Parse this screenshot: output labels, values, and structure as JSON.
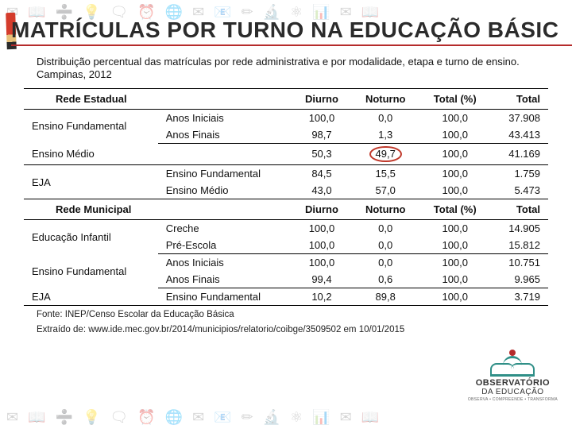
{
  "title": "MATRÍCULAS POR TURNO NA EDUCAÇÃO BÁSIC",
  "subtitle": "Distribuição percentual das matrículas por rede administrativa e por modalidade, etapa e turno de ensino. Campinas, 2012",
  "columns": {
    "network": "",
    "stage": "",
    "diurno": "Diurno",
    "noturno": "Noturno",
    "total_pct": "Total (%)",
    "total": "Total"
  },
  "sections": [
    {
      "header": "Rede Estadual",
      "rows": [
        {
          "group": "Ensino Fundamental",
          "rowspan": 2,
          "stage": "Anos Iniciais",
          "diurno": "100,0",
          "noturno": "0,0",
          "total_pct": "100,0",
          "total": "37.908",
          "top_rule": false
        },
        {
          "stage": "Anos Finais",
          "diurno": "98,7",
          "noturno": "1,3",
          "total_pct": "100,0",
          "total": "43.413",
          "bottom_rule": true
        },
        {
          "group": "Ensino Médio",
          "rowspan": 1,
          "stage": "",
          "diurno": "50,3",
          "noturno": "49,7",
          "noturno_circled": true,
          "total_pct": "100,0",
          "total": "41.169",
          "bottom_rule": true
        },
        {
          "group": "EJA",
          "rowspan": 2,
          "stage": "Ensino Fundamental",
          "diurno": "84,5",
          "noturno": "15,5",
          "total_pct": "100,0",
          "total": "1.759"
        },
        {
          "stage": "Ensino Médio",
          "diurno": "43,0",
          "noturno": "57,0",
          "total_pct": "100,0",
          "total": "5.473",
          "bottom_rule": true
        }
      ]
    },
    {
      "header": "Rede Municipal",
      "rows": [
        {
          "group": "Educação Infantil",
          "rowspan": 2,
          "stage": "Creche",
          "diurno": "100,0",
          "noturno": "0,0",
          "total_pct": "100,0",
          "total": "14.905"
        },
        {
          "stage": "Pré-Escola",
          "diurno": "100,0",
          "noturno": "0,0",
          "total_pct": "100,0",
          "total": "15.812",
          "bottom_rule": true
        },
        {
          "group": "Ensino Fundamental",
          "rowspan": 2,
          "stage": "Anos Iniciais",
          "diurno": "100,0",
          "noturno": "0,0",
          "total_pct": "100,0",
          "total": "10.751"
        },
        {
          "stage": "Anos Finais",
          "diurno": "99,4",
          "noturno": "0,6",
          "total_pct": "100,0",
          "total": "9.965",
          "bottom_rule": true
        },
        {
          "group": "EJA",
          "rowspan": 1,
          "stage": "Ensino Fundamental",
          "diurno": "10,2",
          "noturno": "89,8",
          "total_pct": "100,0",
          "total": "3.719",
          "bottom_rule": true
        }
      ]
    }
  ],
  "footnotes": [
    "Fonte: INEP/Censo Escolar da Educação Básica",
    "Extraído de: www.ide.mec.gov.br/2014/municipios/relatorio/coibge/3509502 em 10/01/2015"
  ],
  "logo": {
    "line1": "OBSERVATÓRIO",
    "line2": "DA EDUCAÇÃO",
    "line3": "OBSERVA • COMPREENDE • TRANSFORMA"
  },
  "deco_glyphs": [
    "✉",
    "📖",
    "➗",
    "💡",
    "🗨",
    "⏰",
    "🌐",
    "✉",
    "📧",
    "✏",
    "🔬",
    "⚛",
    "📊",
    "✉",
    "📖"
  ],
  "colors": {
    "title_underline": "#b52b2b",
    "circle": "#c0392b",
    "logo_green": "#2f8f87",
    "logo_red": "#b52b2b",
    "text": "#111111"
  }
}
